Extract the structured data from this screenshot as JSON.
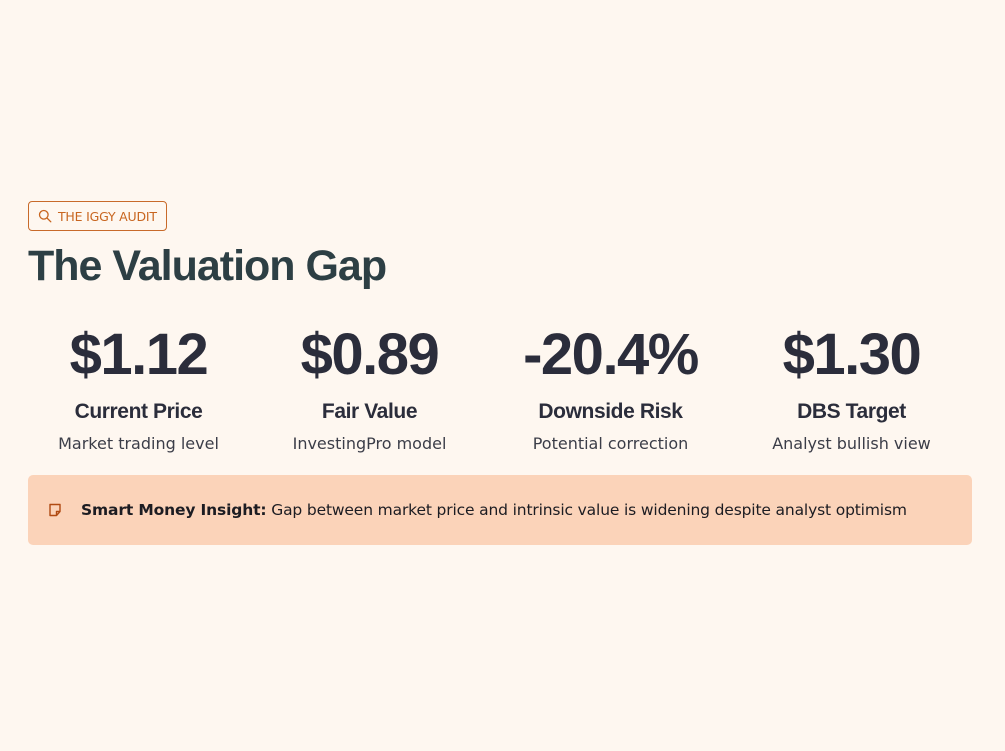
{
  "badge": {
    "icon": "search-icon",
    "label": "THE IGGY AUDIT"
  },
  "title": "The Valuation Gap",
  "stats": [
    {
      "value": "$1.12",
      "label": "Current Price",
      "sub": "Market trading level"
    },
    {
      "value": "$0.89",
      "label": "Fair Value",
      "sub": "InvestingPro model"
    },
    {
      "value": "-20.4%",
      "label": "Downside Risk",
      "sub": "Potential correction"
    },
    {
      "value": "$1.30",
      "label": "DBS Target",
      "sub": "Analyst bullish view"
    }
  ],
  "insight": {
    "icon": "note-icon",
    "heading": "Smart Money Insight:",
    "text": "Gap between market price and intrinsic value is widening despite analyst optimism"
  },
  "colors": {
    "background": "#fef7f0",
    "accent": "#c8651f",
    "insight_background": "#fbd3b9",
    "title": "#2d3f44",
    "text": "#2b2d3b"
  }
}
